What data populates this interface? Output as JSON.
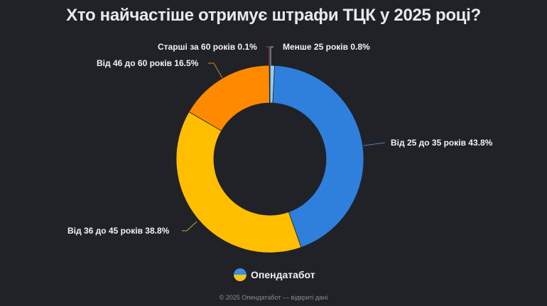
{
  "title": "Хто найчастіше отримує штрафи ТЦК у 2025 році?",
  "labels": {
    "under25": "Менше 25 років 0.8%",
    "25to35": "Від 25 до 35 років 43.8%",
    "36to45": "Від 36 до 45 років 38.8%",
    "46to60": "Від 46 до 60 років 16.5%",
    "over60": "Старші за 60 років 0.1%"
  },
  "brand": {
    "name": "Опендатабот",
    "logo_icon": "ukraine-flag-circle-icon"
  },
  "footer": "© 2025 Опендатабот — відкриті дані",
  "chart_data": {
    "type": "pie",
    "variant": "donut",
    "title": "Хто найчастіше отримує штрафи ТЦК у 2025 році?",
    "categories": [
      "Менше 25 років",
      "Від 25 до 35 років",
      "Від 36 до 45 років",
      "Від 46 до 60 років",
      "Старші за 60 років"
    ],
    "values": [
      0.8,
      43.8,
      38.8,
      16.5,
      0.1
    ],
    "unit": "%",
    "colors": [
      "#8fcdf5",
      "#2f80dc",
      "#ffbf00",
      "#ff8a00",
      "#c0394b"
    ],
    "start_angle": "12 o'clock, clockwise",
    "legend": "none (callout labels)"
  }
}
